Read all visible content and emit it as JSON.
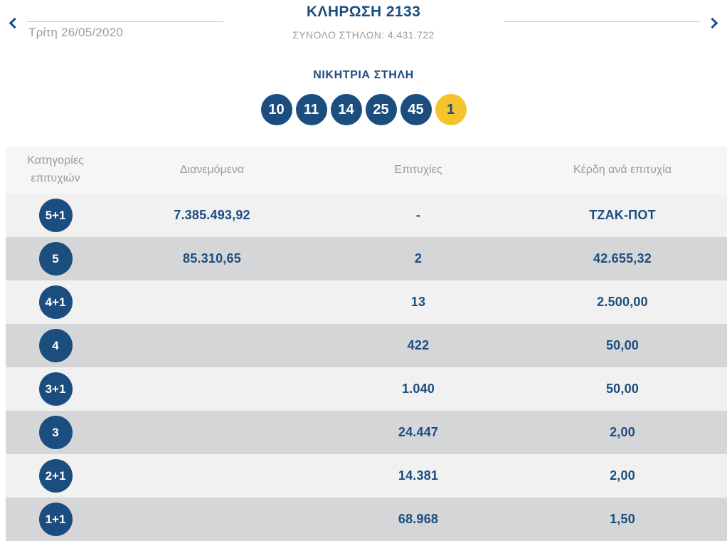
{
  "colors": {
    "accent": "#1c4d7f",
    "bonus-yellow": "#f5c42d",
    "muted": "#9b9b9b",
    "line": "#cbcbcb",
    "row-light": "#f1f1f2",
    "row-dark": "#d5d6d8",
    "thead-bg": "#f6f6f6"
  },
  "header": {
    "prev_icon": "chevron-left-icon",
    "next_icon": "chevron-right-icon",
    "date": "Τρίτη 26/05/2020",
    "title": "ΚΛΗΡΩΣΗ 2133",
    "subtitle": "ΣΥΝΟΛΟ ΣΤΗΛΩΝ: 4.431.722"
  },
  "winning": {
    "title": "ΝΙΚΗΤΡΙΑ ΣΤΗΛΗ",
    "numbers": [
      "10",
      "11",
      "14",
      "25",
      "45"
    ],
    "bonus": "1"
  },
  "table": {
    "columns": [
      "Κατηγορίες επιτυχιών",
      "Διανεμόμενα",
      "Επιτυχίες",
      "Κέρδη ανά επιτυχία"
    ],
    "rows": [
      {
        "category": "5+1",
        "distributed": "7.385.493,92",
        "winners": "-",
        "prize": "ΤΖΑΚ-ΠΟΤ"
      },
      {
        "category": "5",
        "distributed": "85.310,65",
        "winners": "2",
        "prize": "42.655,32"
      },
      {
        "category": "4+1",
        "distributed": "",
        "winners": "13",
        "prize": "2.500,00"
      },
      {
        "category": "4",
        "distributed": "",
        "winners": "422",
        "prize": "50,00"
      },
      {
        "category": "3+1",
        "distributed": "",
        "winners": "1.040",
        "prize": "50,00"
      },
      {
        "category": "3",
        "distributed": "",
        "winners": "24.447",
        "prize": "2,00"
      },
      {
        "category": "2+1",
        "distributed": "",
        "winners": "14.381",
        "prize": "2,00"
      },
      {
        "category": "1+1",
        "distributed": "",
        "winners": "68.968",
        "prize": "1,50"
      }
    ]
  }
}
